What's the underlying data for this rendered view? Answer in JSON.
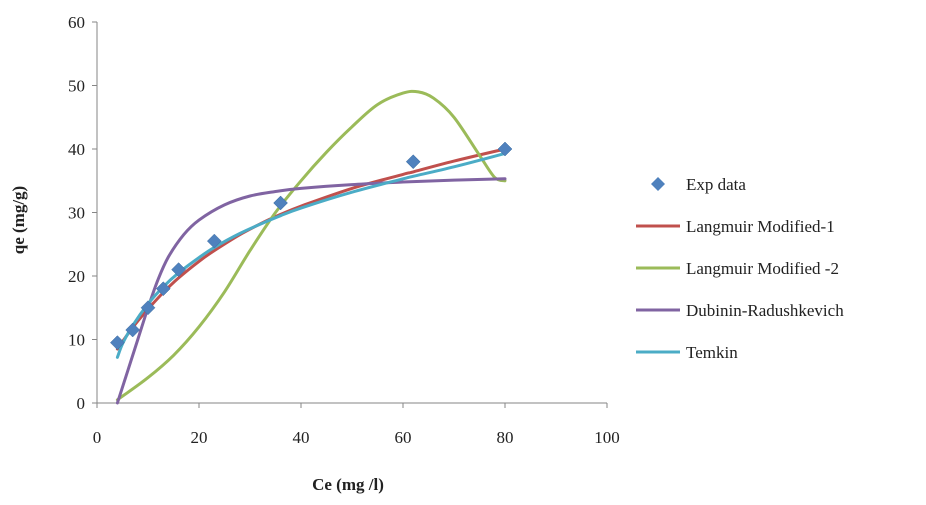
{
  "chart_data": {
    "type": "scatter",
    "title": "",
    "xlabel": "Ce (mg /l)",
    "ylabel": "qe (mg/g)",
    "xlim": [
      0,
      100
    ],
    "ylim": [
      0,
      60
    ],
    "x_ticks": [
      0,
      20,
      40,
      60,
      80,
      100
    ],
    "y_ticks": [
      0,
      10,
      20,
      30,
      40,
      50,
      60
    ],
    "grid": false,
    "legend_position": "right",
    "series": [
      {
        "name": "Exp data",
        "kind": "markers",
        "marker": "diamond",
        "color": "#4f81bd",
        "x": [
          4,
          7,
          10,
          13,
          16,
          23,
          36,
          62,
          80
        ],
        "y": [
          9.5,
          11.5,
          15,
          18,
          21,
          25.5,
          31.5,
          38,
          40
        ]
      },
      {
        "name": "Langmuir Modified-1",
        "kind": "line",
        "color": "#c0504d",
        "x": [
          4,
          6,
          8,
          10,
          13,
          16,
          20,
          23,
          28,
          33,
          36,
          40,
          50,
          60,
          62,
          70,
          80
        ],
        "y": [
          8.5,
          10.8,
          12.9,
          14.8,
          17.4,
          19.7,
          22.3,
          24,
          26.5,
          28.6,
          29.7,
          31,
          33.8,
          36,
          36.4,
          38.1,
          40
        ]
      },
      {
        "name": "Langmuir Modified -2",
        "kind": "line",
        "color": "#9bbb59",
        "x": [
          4,
          10,
          15,
          20,
          25,
          30,
          35,
          40,
          45,
          50,
          55,
          60,
          63,
          66,
          70,
          75,
          78,
          80
        ],
        "y": [
          0.5,
          4,
          7.5,
          12,
          17.5,
          24,
          30,
          35,
          39.5,
          43.5,
          47,
          48.8,
          49,
          48,
          45,
          39,
          35.5,
          35
        ]
      },
      {
        "name": "Dubinin-Radushkevich",
        "kind": "line",
        "color": "#8064a2",
        "x": [
          4,
          6,
          8,
          10,
          12,
          14,
          17,
          20,
          25,
          30,
          35,
          40,
          50,
          60,
          70,
          80
        ],
        "y": [
          0,
          5,
          10,
          15,
          19.5,
          23,
          26.5,
          28.8,
          31.2,
          32.6,
          33.3,
          33.8,
          34.4,
          34.8,
          35.1,
          35.3
        ]
      },
      {
        "name": "Temkin",
        "kind": "line",
        "color": "#4bacc6",
        "x": [
          4,
          5,
          7,
          10,
          13,
          16,
          20,
          23,
          28,
          33,
          36,
          40,
          50,
          60,
          62,
          70,
          80
        ],
        "y": [
          7.2,
          9.3,
          12.2,
          15.6,
          18.3,
          20.5,
          22.9,
          24.5,
          26.7,
          28.5,
          29.5,
          30.7,
          33.2,
          35.3,
          35.7,
          37.2,
          39.3
        ]
      }
    ]
  }
}
